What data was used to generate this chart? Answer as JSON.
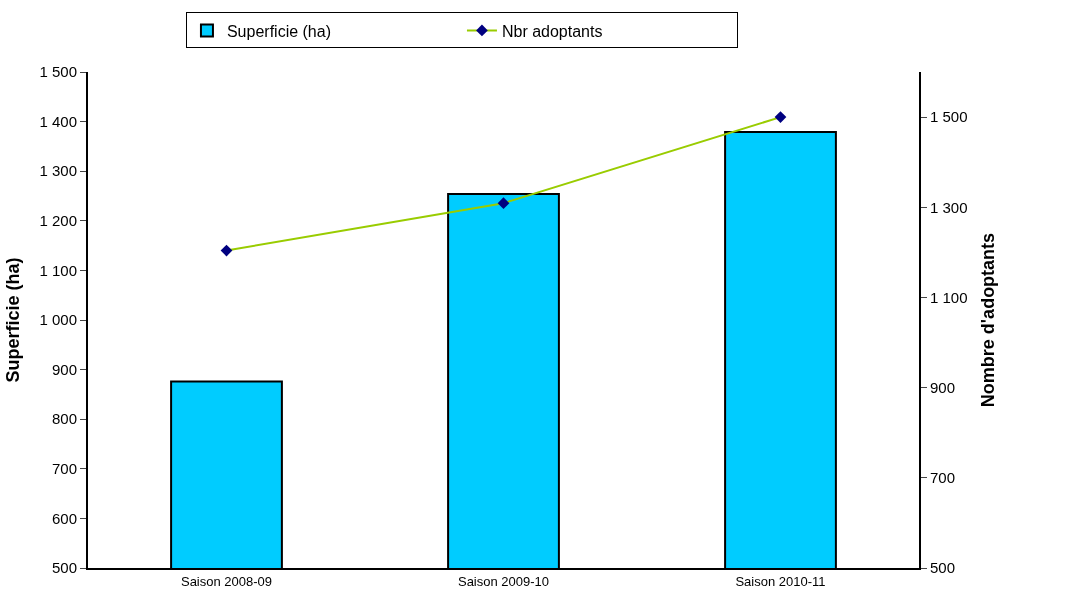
{
  "chart_data": {
    "type": "bar",
    "categories": [
      "Saison 2008-09",
      "Saison 2009-10",
      "Saison 2010-11"
    ],
    "ylabel": "Superficie (ha)",
    "y2label": "Nombre d'adoptants",
    "series": [
      {
        "name": "Superficie (ha)",
        "color": "#00ccff",
        "values": [
          876,
          1254,
          1379
        ]
      },
      {
        "name": "Nbr adoptants",
        "type": "line",
        "axis": "y2",
        "color": "#99cc00",
        "values": [
          1204,
          1309,
          1500
        ]
      }
    ],
    "ylim": [
      500,
      1500
    ],
    "yticks": [
      500,
      600,
      700,
      800,
      900,
      {
        "value": 1000,
        "label": "1 000"
      },
      {
        "value": 1100,
        "label": "1 100"
      },
      {
        "value": 1200,
        "label": "1 200"
      },
      {
        "value": 1300,
        "label": "1 300"
      },
      {
        "value": 1400,
        "label": "1 400"
      },
      {
        "value": 1500,
        "label": "1 500"
      }
    ],
    "y2lim": [
      500,
      1600
    ],
    "y2ticks": [
      500,
      700,
      900,
      {
        "value": 1100,
        "label": "1 100"
      },
      {
        "value": 1300,
        "label": "1 300"
      },
      {
        "value": 1500,
        "label": "1 500"
      }
    ],
    "legend": "top",
    "marker": "diamond"
  }
}
